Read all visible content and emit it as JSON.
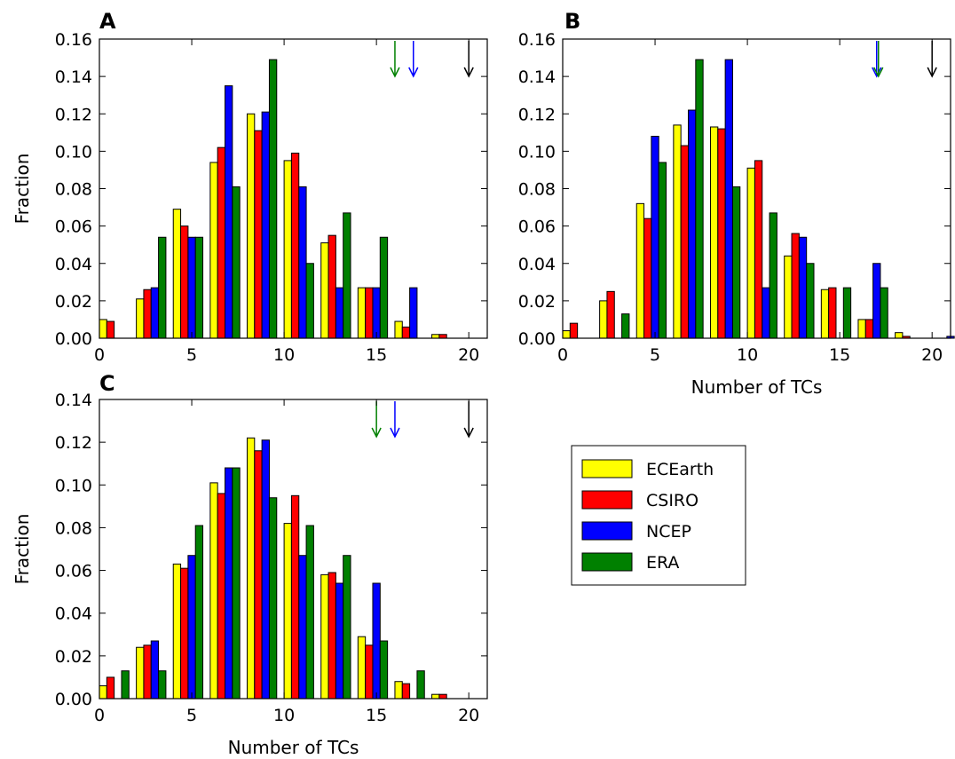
{
  "legend": {
    "entries": [
      {
        "name": "ECEarth",
        "color": "#ffff00"
      },
      {
        "name": "CSIRO",
        "color": "#ff0000"
      },
      {
        "name": "NCEP",
        "color": "#0000ff"
      },
      {
        "name": "ERA",
        "color": "#008000"
      }
    ]
  },
  "chart_data": [
    {
      "type": "bar",
      "panel": "A",
      "ylabel": "Fraction",
      "xlabel": "",
      "xlim": [
        0,
        21
      ],
      "ylim": [
        0,
        0.16
      ],
      "xticks": [
        "0",
        "5",
        "10",
        "15",
        "20"
      ],
      "yticks": [
        "0.00",
        "0.02",
        "0.04",
        "0.06",
        "0.08",
        "0.10",
        "0.12",
        "0.14",
        "0.16"
      ],
      "bin_starts": [
        0,
        2,
        4,
        6,
        8,
        10,
        12,
        14,
        16,
        18
      ],
      "series": [
        {
          "name": "ECEarth",
          "color": "#ffff00",
          "values": [
            0.01,
            0.021,
            0.069,
            0.094,
            0.12,
            0.095,
            0.051,
            0.027,
            0.009,
            0.002
          ]
        },
        {
          "name": "CSIRO",
          "color": "#ff0000",
          "values": [
            0.009,
            0.026,
            0.06,
            0.102,
            0.111,
            0.099,
            0.055,
            0.027,
            0.006,
            0.002
          ]
        },
        {
          "name": "NCEP",
          "color": "#0000ff",
          "values": [
            0.0,
            0.027,
            0.054,
            0.135,
            0.121,
            0.081,
            0.027,
            0.027,
            0.027,
            0.0
          ]
        },
        {
          "name": "ERA",
          "color": "#008000",
          "values": [
            0.0,
            0.054,
            0.054,
            0.081,
            0.149,
            0.04,
            0.067,
            0.054,
            0.0,
            0.0
          ]
        }
      ],
      "arrows": [
        {
          "x": 16,
          "color": "#008000"
        },
        {
          "x": 17,
          "color": "#0000ff"
        },
        {
          "x": 20,
          "color": "#000000"
        }
      ]
    },
    {
      "type": "bar",
      "panel": "B",
      "ylabel": "",
      "xlabel": "Number of TCs",
      "xlim": [
        0,
        21
      ],
      "ylim": [
        0,
        0.16
      ],
      "xticks": [
        "0",
        "5",
        "10",
        "15",
        "20"
      ],
      "yticks": [
        "0.00",
        "0.02",
        "0.04",
        "0.06",
        "0.08",
        "0.10",
        "0.12",
        "0.14",
        "0.16"
      ],
      "bin_starts": [
        0,
        2,
        4,
        6,
        8,
        10,
        12,
        14,
        16,
        18,
        20
      ],
      "series": [
        {
          "name": "ECEarth",
          "color": "#ffff00",
          "values": [
            0.004,
            0.02,
            0.072,
            0.114,
            0.113,
            0.091,
            0.044,
            0.026,
            0.01,
            0.003,
            0.0
          ]
        },
        {
          "name": "CSIRO",
          "color": "#ff0000",
          "values": [
            0.008,
            0.025,
            0.064,
            0.103,
            0.112,
            0.095,
            0.056,
            0.027,
            0.01,
            0.001,
            0.0
          ]
        },
        {
          "name": "NCEP",
          "color": "#0000ff",
          "values": [
            0.0,
            0.0,
            0.108,
            0.122,
            0.149,
            0.027,
            0.054,
            0.0,
            0.04,
            0.0,
            0.001
          ]
        },
        {
          "name": "ERA",
          "color": "#008000",
          "values": [
            0.0,
            0.013,
            0.094,
            0.149,
            0.081,
            0.067,
            0.04,
            0.027,
            0.027,
            0.0,
            0.0
          ]
        }
      ],
      "arrows": [
        {
          "x": 17,
          "color": "#0000ff"
        },
        {
          "x": 17,
          "color": "#008000"
        },
        {
          "x": 20,
          "color": "#000000"
        }
      ]
    },
    {
      "type": "bar",
      "panel": "C",
      "ylabel": "Fraction",
      "xlabel": "Number of TCs",
      "xlim": [
        0,
        21
      ],
      "ylim": [
        0,
        0.14
      ],
      "xticks": [
        "0",
        "5",
        "10",
        "15",
        "20"
      ],
      "yticks": [
        "0.00",
        "0.02",
        "0.04",
        "0.06",
        "0.08",
        "0.10",
        "0.12",
        "0.14"
      ],
      "bin_starts": [
        0,
        2,
        4,
        6,
        8,
        10,
        12,
        14,
        16,
        18
      ],
      "series": [
        {
          "name": "ECEarth",
          "color": "#ffff00",
          "values": [
            0.006,
            0.024,
            0.063,
            0.101,
            0.122,
            0.082,
            0.058,
            0.029,
            0.008,
            0.002
          ]
        },
        {
          "name": "CSIRO",
          "color": "#ff0000",
          "values": [
            0.01,
            0.025,
            0.061,
            0.096,
            0.116,
            0.095,
            0.059,
            0.025,
            0.007,
            0.002
          ]
        },
        {
          "name": "NCEP",
          "color": "#0000ff",
          "values": [
            0.0,
            0.027,
            0.067,
            0.108,
            0.121,
            0.067,
            0.054,
            0.054,
            0.0,
            0.0
          ]
        },
        {
          "name": "ERA",
          "color": "#008000",
          "values": [
            0.013,
            0.013,
            0.081,
            0.108,
            0.094,
            0.081,
            0.067,
            0.027,
            0.013,
            0.0
          ]
        }
      ],
      "arrows": [
        {
          "x": 15,
          "color": "#008000"
        },
        {
          "x": 16,
          "color": "#0000ff"
        },
        {
          "x": 20,
          "color": "#000000"
        }
      ]
    }
  ]
}
